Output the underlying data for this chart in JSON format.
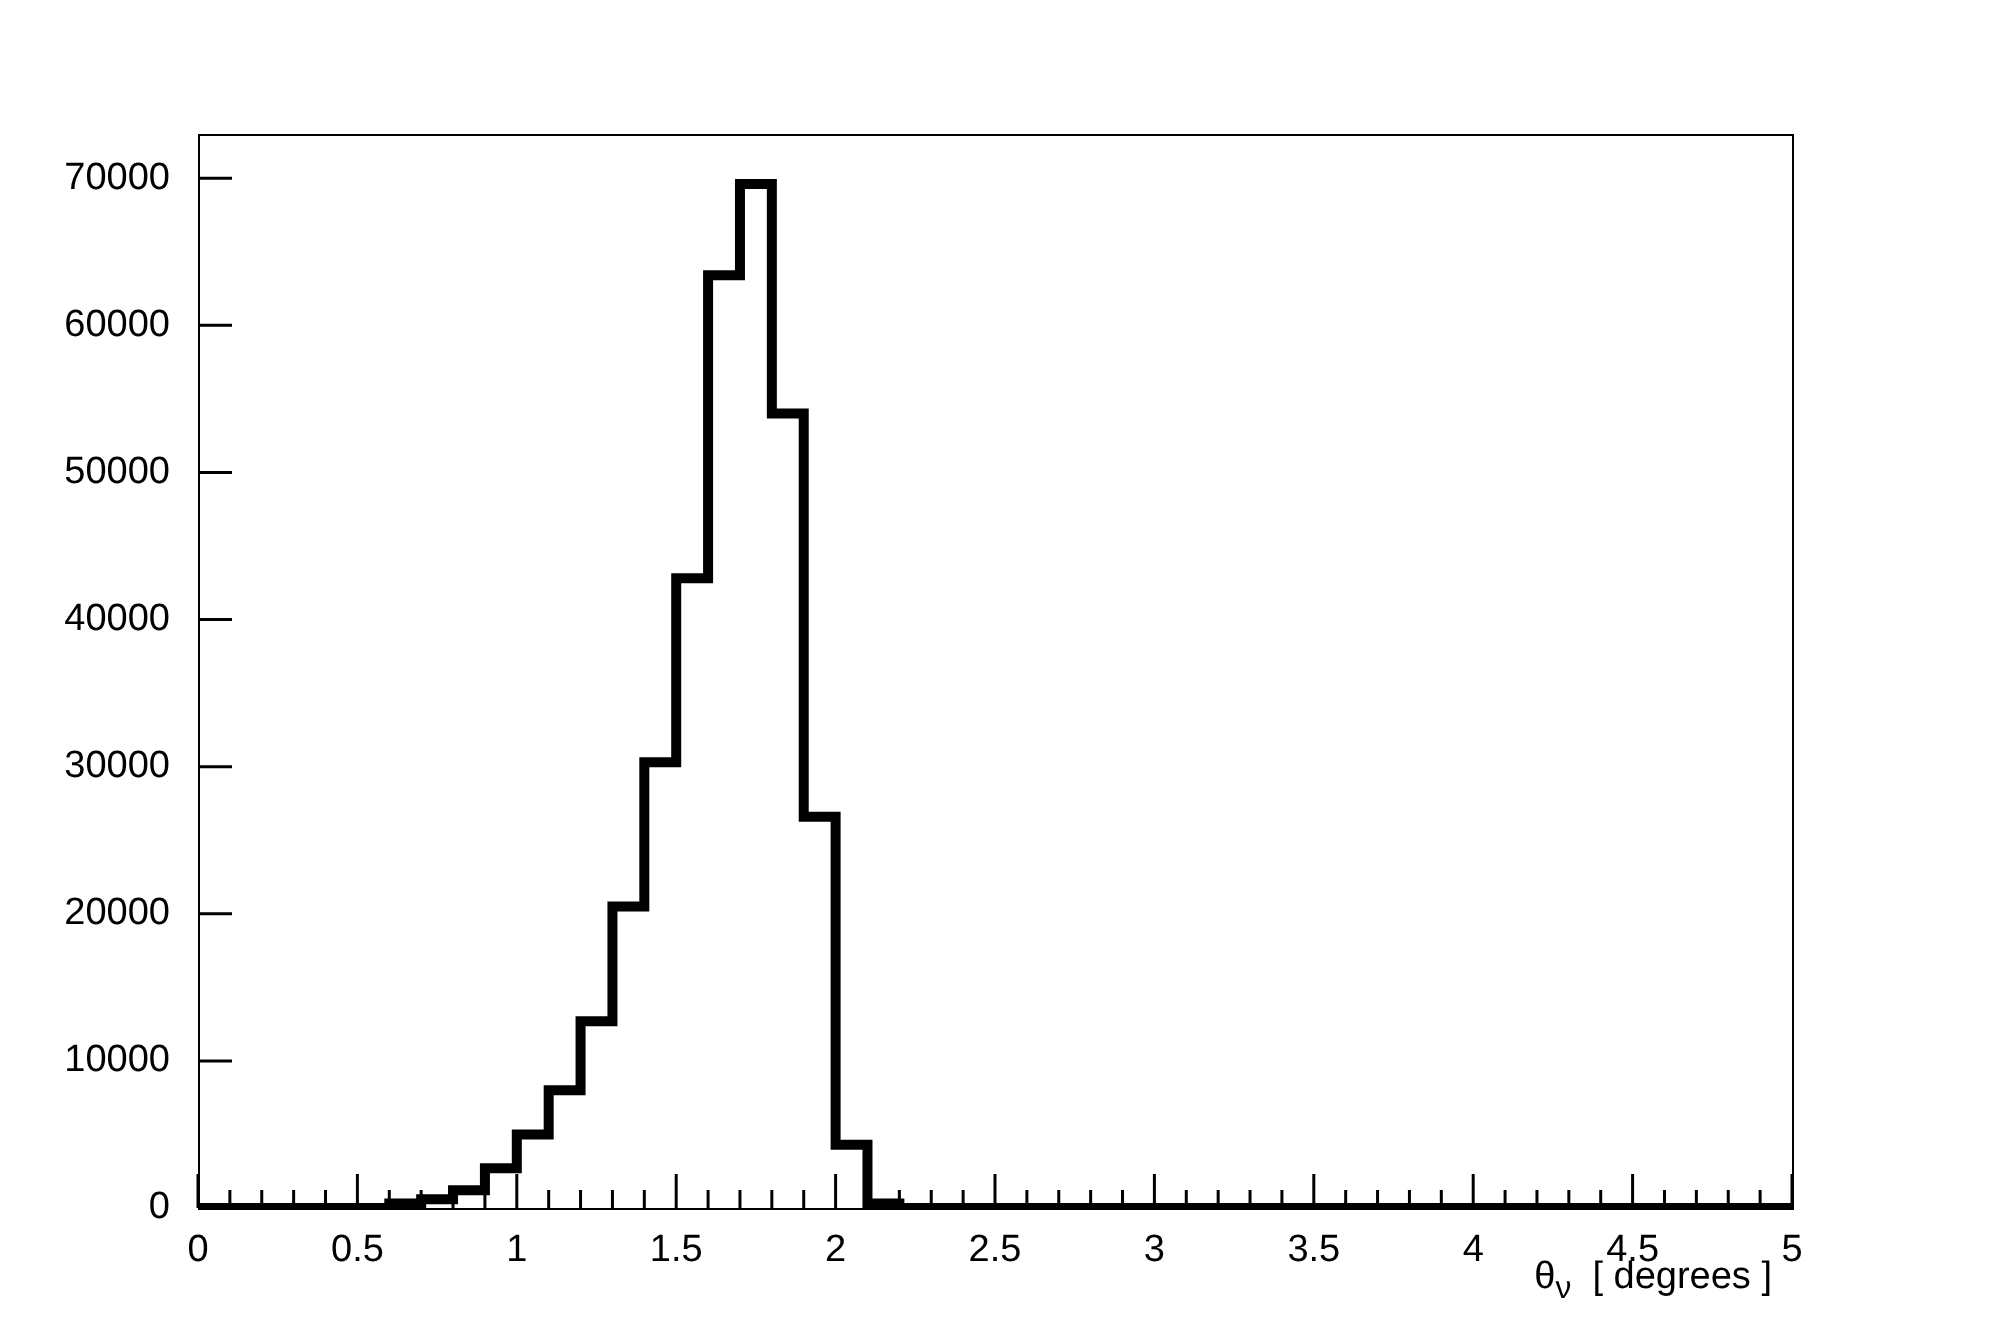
{
  "chart_data": {
    "type": "histogram",
    "xlabel": "θ$_{ν}$  [ degrees ]",
    "color": "#000000",
    "bins": [
      0,
      0.1,
      0.2,
      0.3,
      0.4,
      0.5,
      0.6,
      0.7,
      0.8,
      0.9,
      1.0,
      1.1,
      1.2,
      1.3,
      1.4,
      1.5,
      1.6,
      1.7,
      1.8,
      1.9,
      2.0,
      2.1,
      2.2,
      2.3,
      2.4,
      2.5,
      2.6,
      2.7,
      2.8,
      2.9,
      3.0,
      3.1,
      3.2,
      3.3,
      3.4,
      3.5,
      3.6,
      3.7,
      3.8,
      3.9,
      4.0,
      4.1,
      4.2,
      4.3,
      4.4,
      4.5,
      4.6,
      4.7,
      4.8,
      4.9,
      5.0
    ],
    "values": [
      0,
      0,
      0,
      0,
      0,
      0,
      300,
      600,
      1200,
      2700,
      5000,
      8000,
      12700,
      20500,
      30300,
      42800,
      63400,
      69600,
      54000,
      26600,
      4300,
      300,
      0,
      0,
      0,
      0,
      0,
      0,
      0,
      0,
      0,
      0,
      0,
      0,
      0,
      0,
      0,
      0,
      0,
      0,
      0,
      0,
      0,
      0,
      0,
      0,
      0,
      0,
      0,
      0
    ],
    "xlim": [
      0,
      5
    ],
    "ylim": [
      0,
      73000
    ],
    "xticks": [
      0,
      {
        "value": 0.1,
        "label": null
      },
      {
        "value": 0.2,
        "label": null
      },
      {
        "value": 0.3,
        "label": null
      },
      {
        "value": 0.4,
        "label": null
      },
      0.5,
      {
        "value": 0.6,
        "label": null
      },
      {
        "value": 0.7,
        "label": null
      },
      {
        "value": 0.8,
        "label": null
      },
      {
        "value": 0.9,
        "label": null
      },
      1,
      {
        "value": 1.1,
        "label": null
      },
      {
        "value": 1.2,
        "label": null
      },
      {
        "value": 1.3,
        "label": null
      },
      {
        "value": 1.4,
        "label": null
      },
      1.5,
      {
        "value": 1.6,
        "label": null
      },
      {
        "value": 1.7,
        "label": null
      },
      {
        "value": 1.8,
        "label": null
      },
      {
        "value": 1.9,
        "label": null
      },
      2,
      {
        "value": 2.1,
        "label": null
      },
      {
        "value": 2.2,
        "label": null
      },
      {
        "value": 2.3,
        "label": null
      },
      {
        "value": 2.4,
        "label": null
      },
      2.5,
      {
        "value": 2.6,
        "label": null
      },
      {
        "value": 2.7,
        "label": null
      },
      {
        "value": 2.8,
        "label": null
      },
      {
        "value": 2.9,
        "label": null
      },
      3,
      {
        "value": 3.1,
        "label": null
      },
      {
        "value": 3.2,
        "label": null
      },
      {
        "value": 3.3,
        "label": null
      },
      {
        "value": 3.4,
        "label": null
      },
      3.5,
      {
        "value": 3.6,
        "label": null
      },
      {
        "value": 3.7,
        "label": null
      },
      {
        "value": 3.8,
        "label": null
      },
      {
        "value": 3.9,
        "label": null
      },
      4,
      {
        "value": 4.1,
        "label": null
      },
      {
        "value": 4.2,
        "label": null
      },
      {
        "value": 4.3,
        "label": null
      },
      {
        "value": 4.4,
        "label": null
      },
      4.5,
      {
        "value": 4.6,
        "label": null
      },
      {
        "value": 4.7,
        "label": null
      },
      {
        "value": 4.8,
        "label": null
      },
      {
        "value": 4.9,
        "label": null
      },
      5
    ],
    "yticks": [
      0,
      10000,
      20000,
      30000,
      40000,
      50000,
      60000,
      70000
    ],
    "grid": false,
    "legend": false
  }
}
